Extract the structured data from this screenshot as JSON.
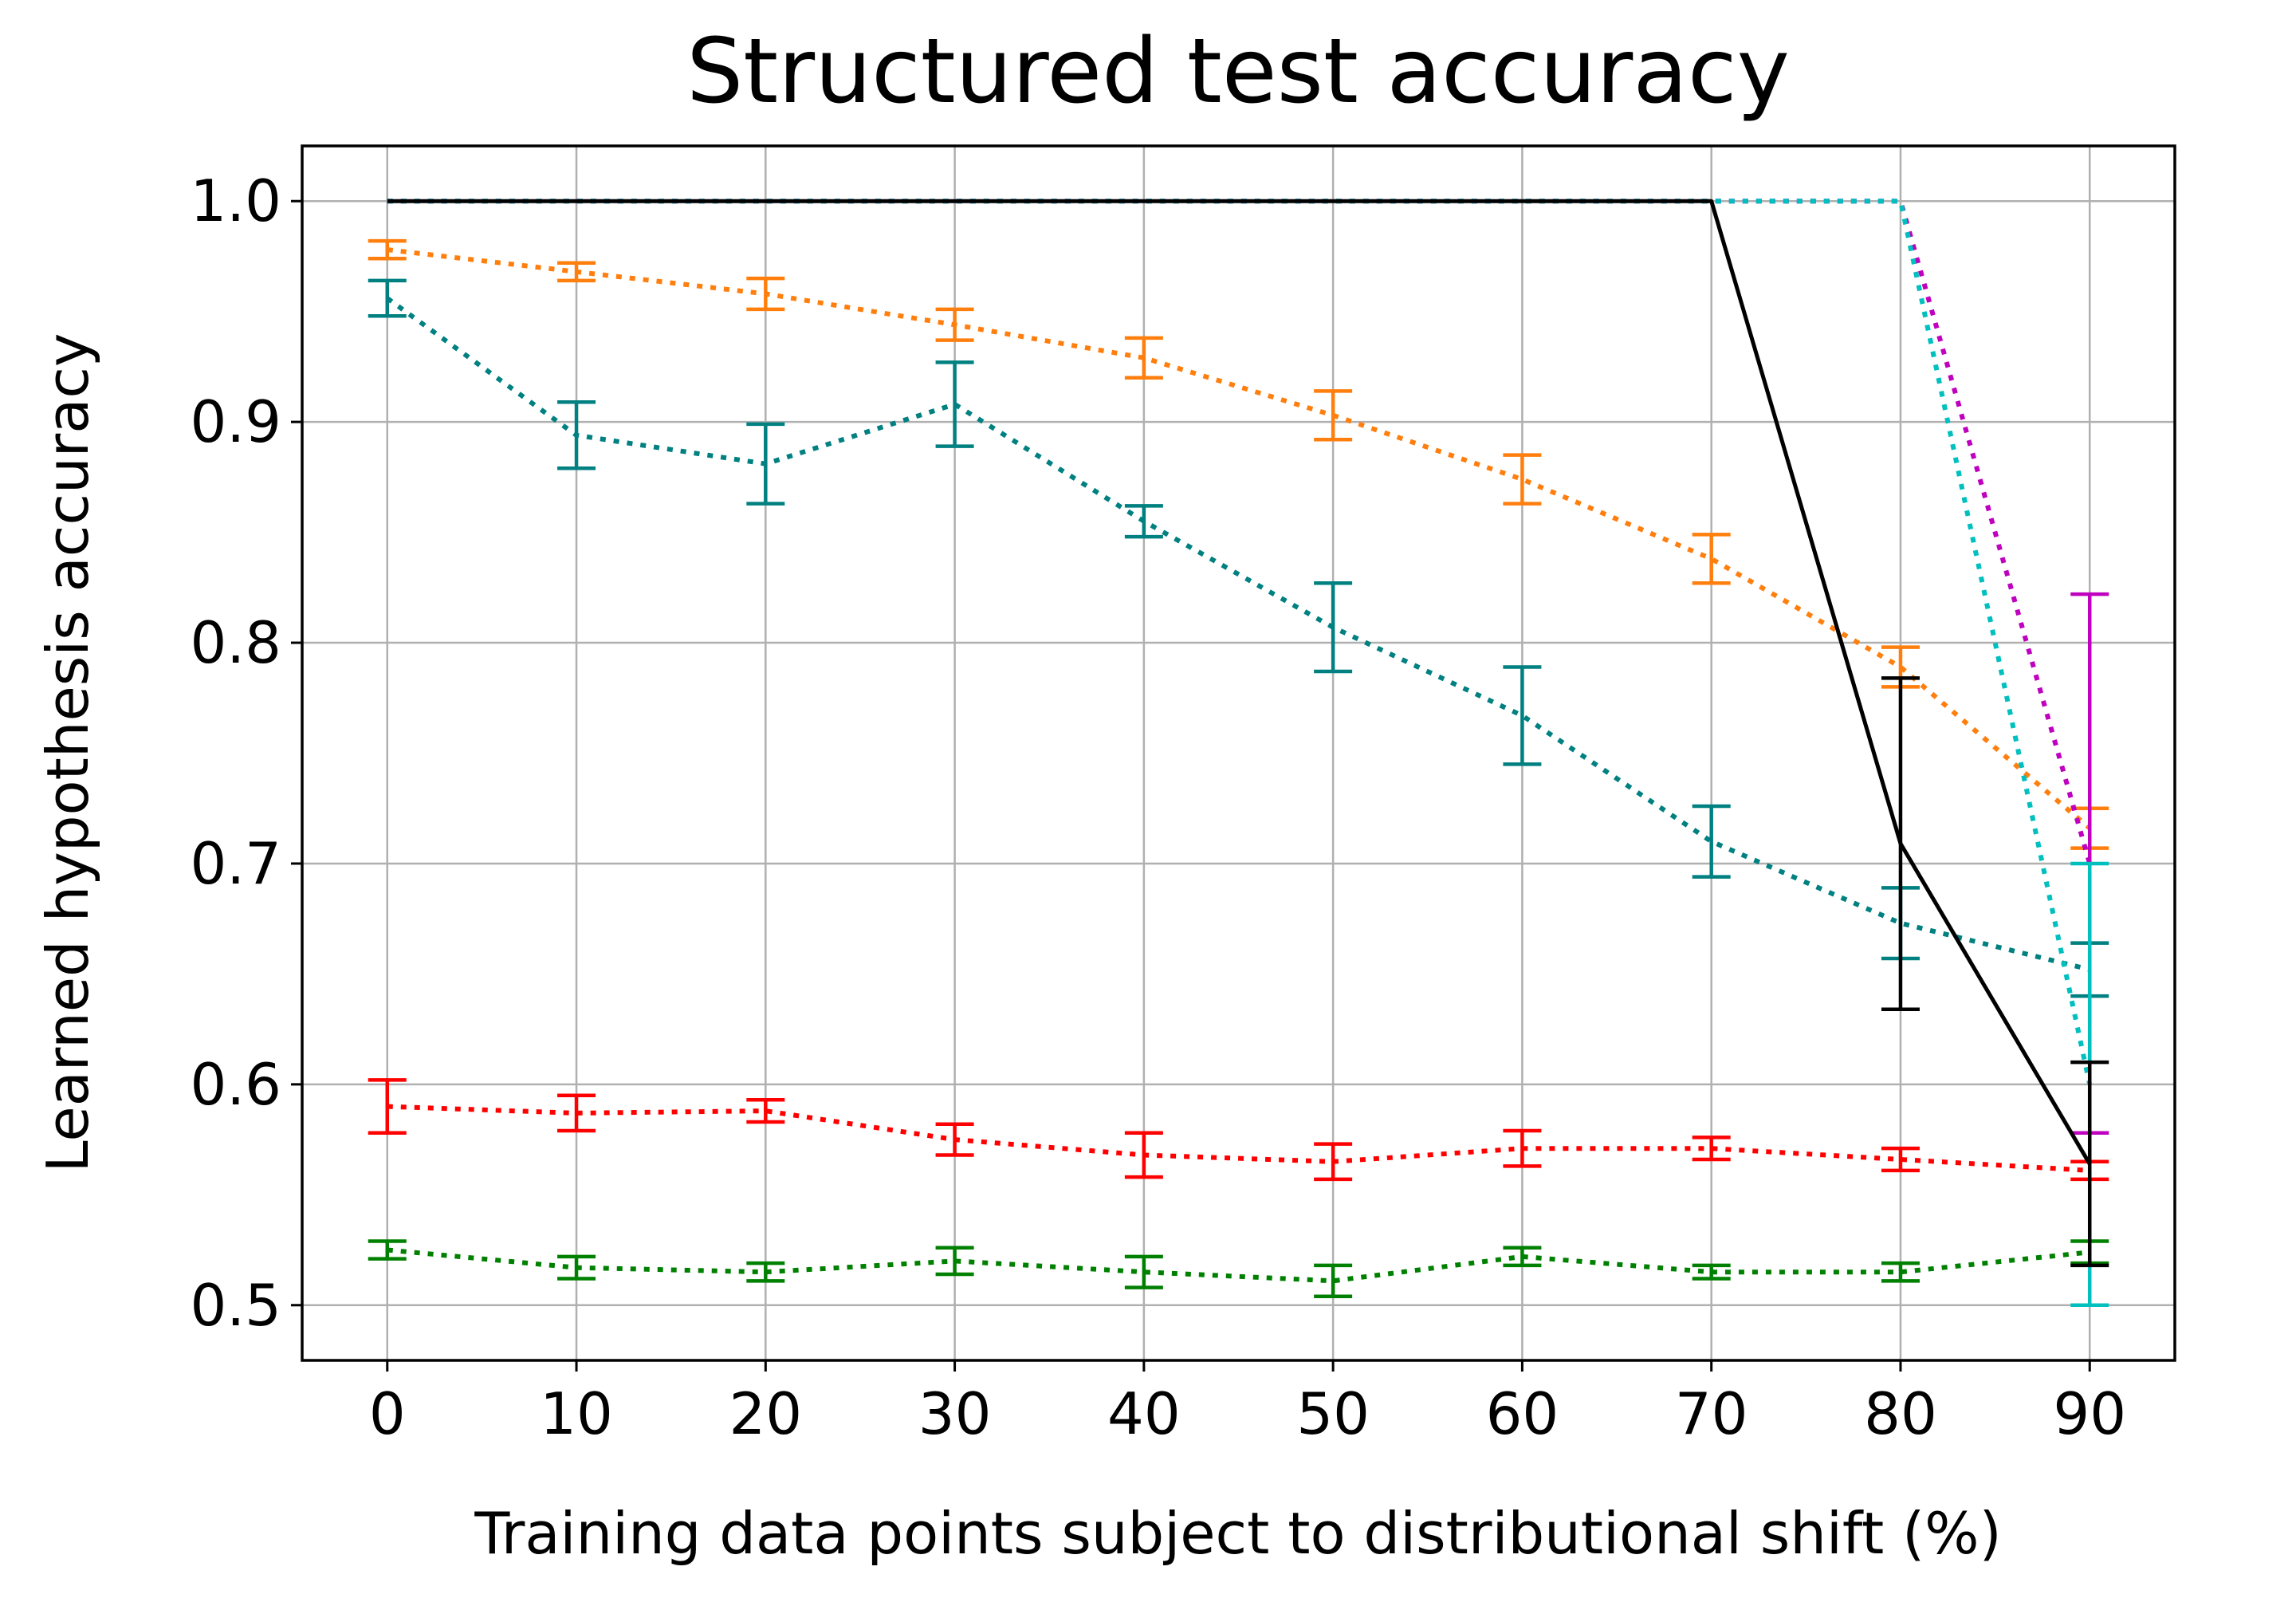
{
  "chart_data": {
    "type": "line",
    "title": "Structured test accuracy",
    "xlabel": "Training data points subject to distributional shift (%)",
    "ylabel": "Learned hypothesis accuracy",
    "xlim": [
      -4.5,
      94.5
    ],
    "ylim": [
      0.475,
      1.025
    ],
    "x_ticks": [
      0,
      10,
      20,
      30,
      40,
      50,
      60,
      70,
      80,
      90
    ],
    "x_tick_labels": [
      "0",
      "10",
      "20",
      "30",
      "40",
      "50",
      "60",
      "70",
      "80",
      "90"
    ],
    "y_ticks": [
      0.5,
      0.6,
      0.7,
      0.8,
      0.9,
      1.0
    ],
    "y_tick_labels": [
      "0.5",
      "0.6",
      "0.7",
      "0.8",
      "0.9",
      "1.0"
    ],
    "grid": true,
    "legend": false,
    "series": [
      {
        "color": "#ff7f0e",
        "line_style": "dotted",
        "x": [
          0,
          10,
          20,
          30,
          40,
          50,
          60,
          70,
          80,
          90
        ],
        "y": [
          0.978,
          0.968,
          0.958,
          0.944,
          0.929,
          0.903,
          0.874,
          0.838,
          0.789,
          0.716
        ],
        "err": [
          0.004,
          0.004,
          0.007,
          0.007,
          0.009,
          0.011,
          0.011,
          0.011,
          0.009,
          0.009
        ]
      },
      {
        "color": "#008080",
        "line_style": "dotted",
        "x": [
          0,
          10,
          20,
          30,
          40,
          50,
          60,
          70,
          80,
          90
        ],
        "y": [
          0.956,
          0.894,
          0.881,
          0.908,
          0.855,
          0.807,
          0.767,
          0.71,
          0.673,
          0.652
        ],
        "err": [
          0.008,
          0.015,
          0.018,
          0.019,
          0.007,
          0.02,
          0.022,
          0.016,
          0.016,
          0.012
        ]
      },
      {
        "color": "#ff0000",
        "line_style": "dotted",
        "x": [
          0,
          10,
          20,
          30,
          40,
          50,
          60,
          70,
          80,
          90
        ],
        "y": [
          0.59,
          0.587,
          0.588,
          0.575,
          0.568,
          0.565,
          0.571,
          0.571,
          0.566,
          0.561
        ],
        "err": [
          0.012,
          0.008,
          0.005,
          0.007,
          0.01,
          0.008,
          0.008,
          0.005,
          0.005,
          0.004
        ]
      },
      {
        "color": "#008000",
        "line_style": "dotted",
        "x": [
          0,
          10,
          20,
          30,
          40,
          50,
          60,
          70,
          80,
          90
        ],
        "y": [
          0.525,
          0.517,
          0.515,
          0.52,
          0.515,
          0.511,
          0.522,
          0.515,
          0.515,
          0.524
        ],
        "err": [
          0.004,
          0.005,
          0.004,
          0.006,
          0.007,
          0.007,
          0.004,
          0.003,
          0.004,
          0.005
        ]
      },
      {
        "color": "#bf00bf",
        "line_style": "dotted",
        "x": [
          0,
          10,
          20,
          30,
          40,
          50,
          60,
          70,
          80,
          90
        ],
        "y": [
          1.0,
          1.0,
          1.0,
          1.0,
          1.0,
          1.0,
          1.0,
          1.0,
          1.0,
          0.7
        ],
        "err": [
          0,
          0,
          0,
          0,
          0,
          0,
          0,
          0,
          0,
          0.122
        ]
      },
      {
        "color": "#00bfbf",
        "line_style": "dotted",
        "x": [
          0,
          10,
          20,
          30,
          40,
          50,
          60,
          70,
          80,
          90
        ],
        "y": [
          1.0,
          1.0,
          1.0,
          1.0,
          1.0,
          1.0,
          1.0,
          1.0,
          1.0,
          0.6
        ],
        "err": [
          0,
          0,
          0,
          0,
          0,
          0,
          0,
          0,
          0,
          0.1
        ]
      },
      {
        "color": "#000000",
        "line_style": "solid",
        "x": [
          0,
          10,
          20,
          30,
          40,
          50,
          60,
          70,
          80,
          90
        ],
        "y": [
          1.0,
          1.0,
          1.0,
          1.0,
          1.0,
          1.0,
          1.0,
          1.0,
          0.709,
          0.564
        ],
        "err": [
          0,
          0,
          0,
          0,
          0,
          0,
          0,
          0,
          0.075,
          0.046
        ]
      }
    ]
  }
}
